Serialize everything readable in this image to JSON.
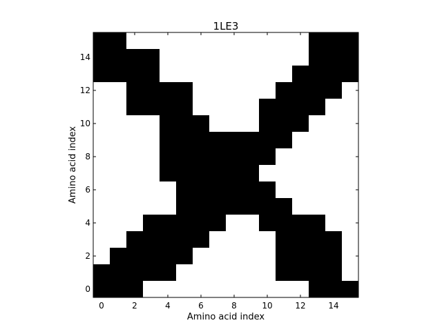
{
  "chart_data": {
    "type": "heatmap",
    "title": "1LE3",
    "xlabel": "Amino acid index",
    "ylabel": "Amino acid index",
    "xlim": [
      -0.5,
      15.5
    ],
    "ylim": [
      -0.5,
      15.5
    ],
    "xticks": [
      0,
      2,
      4,
      6,
      8,
      10,
      12,
      14
    ],
    "yticks": [
      0,
      2,
      4,
      6,
      8,
      10,
      12,
      14
    ],
    "xtick_labels": [
      "0",
      "2",
      "4",
      "6",
      "8",
      "10",
      "12",
      "14"
    ],
    "ytick_labels": [
      "0",
      "2",
      "4",
      "6",
      "8",
      "10",
      "12",
      "14"
    ],
    "origin": "lower",
    "colors": {
      "on": "#000000",
      "off": "#ffffff"
    },
    "grid": false,
    "rows_top_to_bottom": [
      "1100000000000111",
      "1111000000000111",
      "1111000000001111",
      "0011110000011110",
      "0011110000111100",
      "0000111000111000",
      "0000111111110000",
      "0000111111100000",
      "0000111111000000",
      "0000011111100000",
      "0000011111110000",
      "0001111100111100",
      "0011111000011110",
      "0111110000011110",
      "1111100000011110",
      "1110000000000111"
    ]
  }
}
